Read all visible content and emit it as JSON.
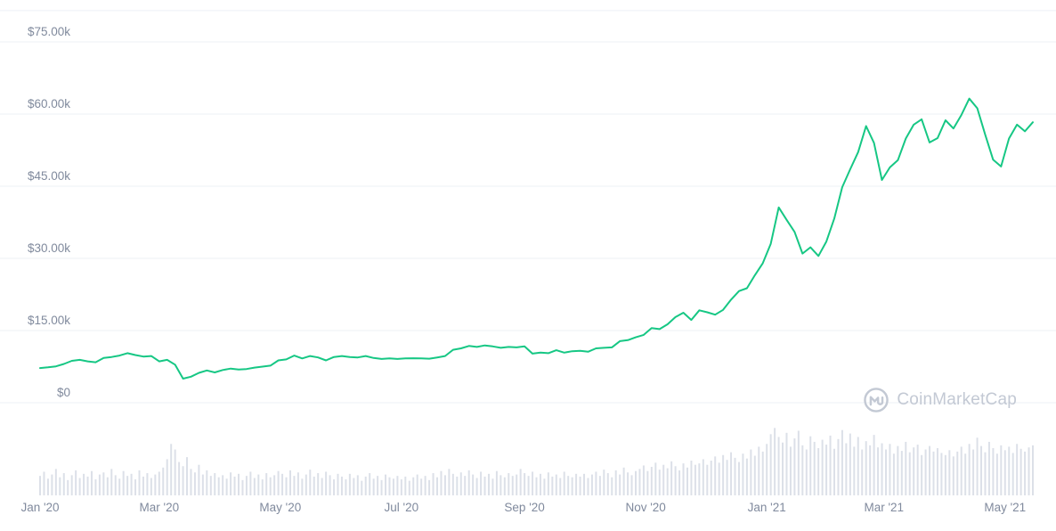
{
  "watermark": {
    "label": "CoinMarketCap"
  },
  "colors": {
    "background": "#ffffff",
    "line": "#16c784",
    "grid": "#eef1f6",
    "axis_text": "#808a9d",
    "volume_bar": "#c9d0dc",
    "watermark": "#c3c9d4"
  },
  "chart_data": {
    "type": "line",
    "title": "",
    "xlabel": "",
    "ylabel": "",
    "grid": true,
    "legend_position": "none",
    "ylim": [
      0,
      81500
    ],
    "y_ticks": [
      {
        "label": "$75.00k",
        "value": 75000
      },
      {
        "label": "$60.00k",
        "value": 60000
      },
      {
        "label": "$45.00k",
        "value": 45000
      },
      {
        "label": "$30.00k",
        "value": 30000
      },
      {
        "label": "$15.00k",
        "value": 15000
      },
      {
        "label": "$0",
        "value": 0
      }
    ],
    "x_ticks": [
      {
        "label": "Jan '20",
        "day": 0
      },
      {
        "label": "Mar '20",
        "day": 60
      },
      {
        "label": "May '20",
        "day": 121
      },
      {
        "label": "Jul '20",
        "day": 182
      },
      {
        "label": "Sep '20",
        "day": 244
      },
      {
        "label": "Nov '20",
        "day": 305
      },
      {
        "label": "Jan '21",
        "day": 366
      },
      {
        "label": "Mar '21",
        "day": 425
      },
      {
        "label": "May '21",
        "day": 486
      }
    ],
    "series": [
      {
        "name": "price",
        "unit": "USD thousands",
        "x_step_days": 4,
        "values": [
          7.2,
          7.35,
          7.55,
          8.05,
          8.7,
          8.9,
          8.6,
          8.4,
          9.3,
          9.5,
          9.8,
          10.3,
          9.9,
          9.6,
          9.7,
          8.6,
          8.9,
          7.9,
          5.0,
          5.4,
          6.2,
          6.7,
          6.3,
          6.8,
          7.1,
          6.9,
          7.0,
          7.3,
          7.5,
          7.7,
          8.8,
          9.0,
          9.8,
          9.2,
          9.7,
          9.4,
          8.8,
          9.5,
          9.7,
          9.5,
          9.4,
          9.7,
          9.3,
          9.1,
          9.2,
          9.1,
          9.2,
          9.25,
          9.2,
          9.15,
          9.4,
          9.7,
          11.0,
          11.3,
          11.8,
          11.6,
          11.9,
          11.7,
          11.4,
          11.6,
          11.5,
          11.7,
          10.2,
          10.4,
          10.3,
          10.9,
          10.4,
          10.7,
          10.8,
          10.6,
          11.3,
          11.4,
          11.5,
          12.8,
          13.0,
          13.6,
          14.1,
          15.5,
          15.3,
          16.3,
          17.8,
          18.7,
          17.2,
          19.2,
          18.8,
          18.3,
          19.3,
          21.4,
          23.2,
          23.8,
          26.5,
          29.0,
          33.0,
          40.6,
          38.0,
          35.5,
          31.0,
          32.3,
          30.5,
          33.5,
          38.3,
          44.8,
          48.5,
          52.1,
          57.5,
          54.0,
          46.3,
          48.9,
          50.4,
          54.9,
          57.8,
          58.9,
          54.1,
          55.0,
          58.7,
          57.0,
          59.8,
          63.2,
          61.2,
          55.7,
          50.5,
          49.1,
          54.9,
          57.8,
          56.4,
          58.3
        ]
      }
    ],
    "volume": {
      "unit": "relative 0-100",
      "x_step_days": 2,
      "values": [
        28,
        34,
        24,
        30,
        38,
        26,
        32,
        22,
        29,
        36,
        25,
        31,
        27,
        35,
        23,
        30,
        33,
        26,
        38,
        29,
        24,
        35,
        28,
        31,
        23,
        36,
        27,
        32,
        25,
        30,
        34,
        40,
        52,
        74,
        66,
        48,
        42,
        55,
        38,
        33,
        44,
        30,
        36,
        28,
        32,
        26,
        29,
        24,
        33,
        27,
        31,
        22,
        28,
        34,
        25,
        30,
        23,
        32,
        26,
        29,
        35,
        31,
        26,
        36,
        28,
        33,
        24,
        30,
        37,
        27,
        32,
        25,
        34,
        29,
        23,
        31,
        27,
        23,
        31,
        25,
        29,
        21,
        27,
        32,
        24,
        28,
        22,
        30,
        26,
        24,
        28,
        23,
        27,
        21,
        26,
        30,
        24,
        28,
        22,
        32,
        26,
        35,
        29,
        38,
        31,
        27,
        33,
        28,
        36,
        30,
        25,
        34,
        27,
        31,
        24,
        35,
        29,
        26,
        32,
        28,
        30,
        38,
        32,
        28,
        34,
        26,
        31,
        24,
        33,
        27,
        30,
        25,
        34,
        28,
        26,
        31,
        27,
        31,
        25,
        30,
        34,
        28,
        37,
        32,
        26,
        36,
        30,
        40,
        33,
        29,
        35,
        38,
        43,
        35,
        41,
        47,
        37,
        44,
        39,
        49,
        42,
        36,
        46,
        40,
        50,
        44,
        46,
        52,
        44,
        50,
        56,
        47,
        58,
        51,
        62,
        54,
        48,
        60,
        53,
        66,
        57,
        70,
        63,
        74,
        88,
        97,
        84,
        76,
        90,
        70,
        82,
        93,
        72,
        66,
        85,
        77,
        68,
        80,
        73,
        86,
        67,
        81,
        94,
        75,
        89,
        70,
        84,
        66,
        78,
        72,
        87,
        69,
        75,
        66,
        74,
        60,
        71,
        64,
        77,
        62,
        69,
        73,
        58,
        66,
        71,
        63,
        68,
        61,
        58,
        65,
        56,
        63,
        70,
        60,
        74,
        66,
        83,
        71,
        62,
        77,
        68,
        60,
        72,
        65,
        70,
        61,
        74,
        67,
        63,
        69,
        72
      ]
    }
  }
}
